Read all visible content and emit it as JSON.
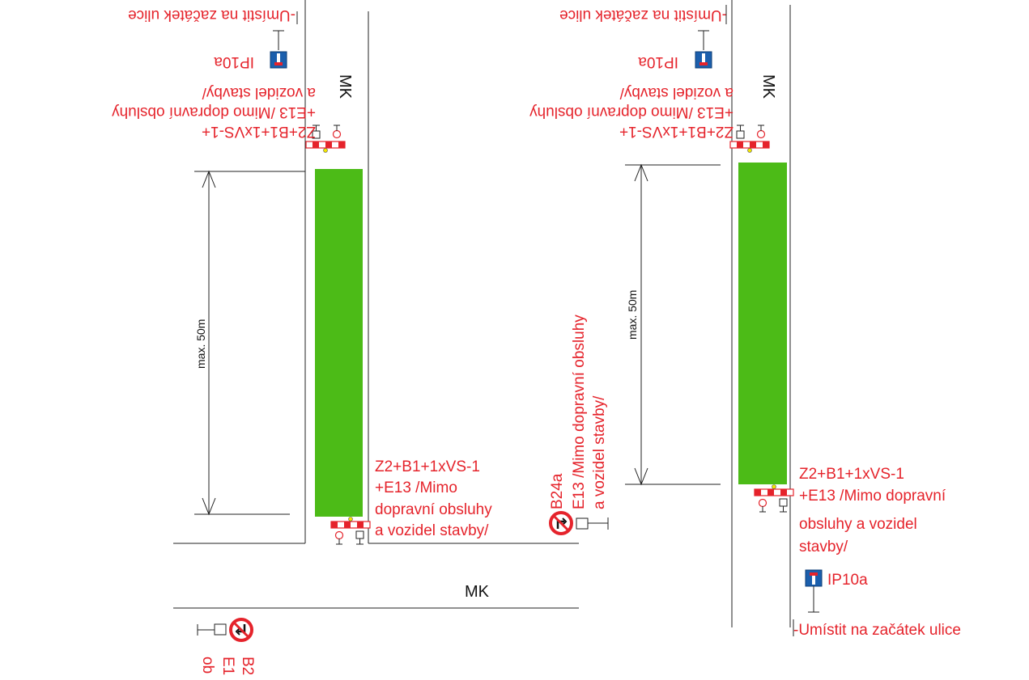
{
  "colors": {
    "construction_zone": "#4cbb17",
    "annotation": "#e5232b",
    "lines": "#222222",
    "info_sign_blue": "#1b5fad"
  },
  "left_drawing": {
    "street_label": "MK",
    "dimension": "max. 50m",
    "top_sign_text": [
      "Z2+B1+1xVS-1+",
      "+E13 /Mimo dopravní obsluhy",
      "a vozidel stavby/"
    ],
    "top_ip_label": "IP10a",
    "top_note": "-Umístit na začátek ulice",
    "bottom_sign_text": [
      "Z2+B1+1xVS-1",
      "+E13 /Mimo",
      "dopravní obsluhy",
      "a vozidel stavby/"
    ],
    "b24_label": "B24a",
    "b24_text": [
      "E13 /Mimo dopravní obsluhy",
      "a vozidel stavby/"
    ]
  },
  "cross_street_label": "MK",
  "bottom_left_text": [
    "B2",
    "E1",
    "ob"
  ],
  "right_drawing": {
    "street_label": "MK",
    "dimension": "max. 50m",
    "top_sign_text": [
      "Z2+B1+1xVS-1+",
      "+E13 /Mimo dopravní obsluhy",
      "a vozidel stavby/"
    ],
    "top_ip_label": "IP10a",
    "top_note": "-Umístit na začátek ulice",
    "bottom_sign_text": [
      "Z2+B1+1xVS-1",
      "+E13 /Mimo dopravní",
      "obsluhy a vozidel",
      "stavby/"
    ],
    "bottom_ip_label": "IP10a",
    "bottom_note": "-Umístit na začátek ulice"
  },
  "icons": [
    "barrier-icon",
    "traffic-light-icon",
    "dead-end-sign-icon",
    "no-turn-sign-icon"
  ]
}
